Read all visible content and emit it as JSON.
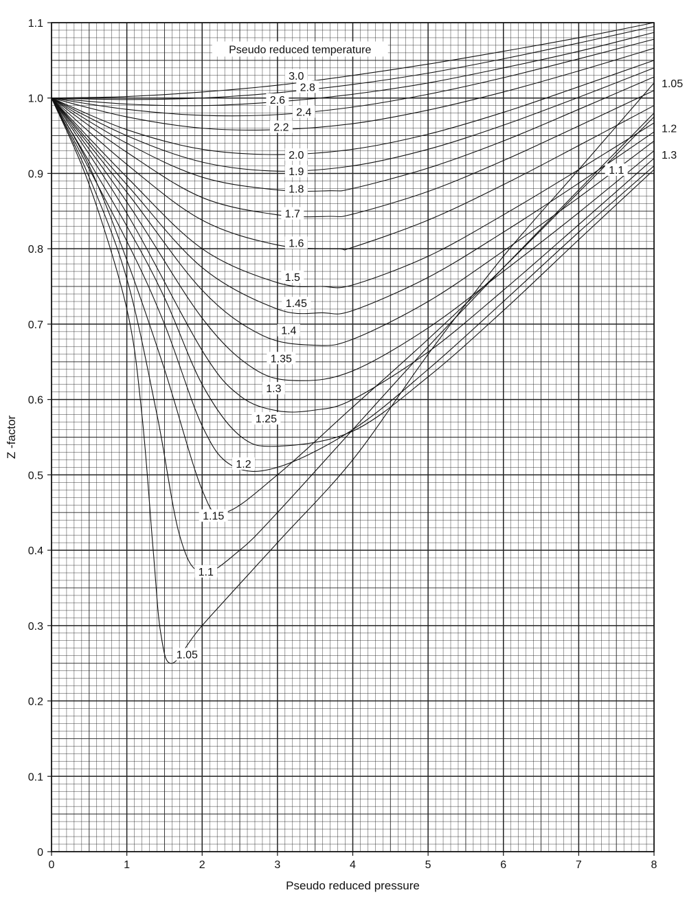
{
  "chart_data": {
    "type": "line",
    "title": "",
    "annotation": "Pseudo reduced temperature",
    "xlabel": "Pseudo reduced pressure",
    "ylabel": "Z -factor",
    "xlim": [
      0,
      8
    ],
    "ylim": [
      0,
      1.1
    ],
    "x_ticks": [
      "0",
      "1",
      "2",
      "3",
      "4",
      "5",
      "6",
      "7",
      "8"
    ],
    "y_ticks": [
      "0",
      "0.1",
      "0.2",
      "0.3",
      "0.4",
      "0.5",
      "0.6",
      "0.7",
      "0.8",
      "0.9",
      "1.0",
      "1.1"
    ],
    "grid": true,
    "series": [
      {
        "name": "3.0",
        "x": [
          0,
          1,
          2,
          3,
          4,
          5,
          6,
          7,
          8
        ],
        "y": [
          1.0,
          1.002,
          1.008,
          1.017,
          1.03,
          1.045,
          1.062,
          1.08,
          1.1
        ]
      },
      {
        "name": "2.8",
        "x": [
          0,
          1,
          2,
          3,
          4,
          5,
          6,
          7,
          8
        ],
        "y": [
          1.0,
          0.998,
          1.0,
          1.007,
          1.018,
          1.033,
          1.052,
          1.073,
          1.095
        ]
      },
      {
        "name": "2.6",
        "x": [
          0,
          1,
          2,
          3,
          4,
          5,
          6,
          7,
          8
        ],
        "y": [
          1.0,
          0.992,
          0.99,
          0.995,
          1.005,
          1.02,
          1.04,
          1.062,
          1.087
        ]
      },
      {
        "name": "2.4",
        "x": [
          0,
          1,
          2,
          3,
          4,
          5,
          6,
          7,
          8
        ],
        "y": [
          1.0,
          0.985,
          0.977,
          0.978,
          0.988,
          1.005,
          1.027,
          1.052,
          1.078
        ]
      },
      {
        "name": "2.2",
        "x": [
          0,
          1,
          2,
          3,
          4,
          5,
          6,
          7,
          8
        ],
        "y": [
          1.0,
          0.975,
          0.96,
          0.958,
          0.966,
          0.984,
          1.008,
          1.036,
          1.066
        ]
      },
      {
        "name": "2.0",
        "x": [
          0,
          1,
          2,
          3,
          4,
          5,
          6,
          7,
          8
        ],
        "y": [
          1.0,
          0.958,
          0.932,
          0.925,
          0.932,
          0.952,
          0.981,
          1.015,
          1.05
        ]
      },
      {
        "name": "1.9",
        "x": [
          0,
          1,
          2,
          3,
          4,
          5,
          6,
          7,
          8
        ],
        "y": [
          1.0,
          0.95,
          0.915,
          0.903,
          0.91,
          0.932,
          0.964,
          1.001,
          1.04
        ]
      },
      {
        "name": "1.8",
        "x": [
          0,
          1,
          2,
          3,
          3.7,
          4,
          5,
          6,
          7,
          8
        ],
        "y": [
          1.0,
          0.94,
          0.895,
          0.878,
          0.877,
          0.88,
          0.907,
          0.943,
          0.985,
          1.028
        ]
      },
      {
        "name": "1.7",
        "x": [
          0,
          1,
          2,
          3,
          3.7,
          4,
          5,
          6,
          7,
          8
        ],
        "y": [
          1.0,
          0.928,
          0.868,
          0.845,
          0.843,
          0.846,
          0.876,
          0.917,
          0.963,
          1.01
        ]
      },
      {
        "name": "1.6",
        "x": [
          0,
          1,
          2,
          3,
          3.8,
          4,
          5,
          6,
          7,
          8
        ],
        "y": [
          1.0,
          0.912,
          0.838,
          0.805,
          0.8,
          0.802,
          0.838,
          0.885,
          0.937,
          0.99
        ]
      },
      {
        "name": "1.5",
        "x": [
          0,
          1,
          2,
          3,
          3.6,
          4,
          5,
          6,
          7,
          8
        ],
        "y": [
          1.0,
          0.895,
          0.8,
          0.755,
          0.75,
          0.752,
          0.79,
          0.845,
          0.905,
          0.967
        ]
      },
      {
        "name": "1.45",
        "x": [
          0,
          1,
          2,
          3,
          3.6,
          4,
          5,
          6,
          7,
          8
        ],
        "y": [
          1.0,
          0.885,
          0.775,
          0.72,
          0.715,
          0.718,
          0.762,
          0.822,
          0.887,
          0.955
        ]
      },
      {
        "name": "1.4",
        "x": [
          0,
          1,
          2,
          2.8,
          3.5,
          4,
          5,
          6,
          7,
          8
        ],
        "y": [
          1.0,
          0.875,
          0.745,
          0.685,
          0.672,
          0.68,
          0.73,
          0.797,
          0.868,
          0.943
        ]
      },
      {
        "name": "1.35",
        "x": [
          0,
          1,
          2,
          2.7,
          3.3,
          4,
          5,
          6,
          7,
          8
        ],
        "y": [
          1.0,
          0.862,
          0.708,
          0.64,
          0.625,
          0.638,
          0.695,
          0.77,
          0.848,
          0.93
        ]
      },
      {
        "name": "1.3",
        "x": [
          0,
          1,
          2,
          2.5,
          3,
          3.5,
          4,
          5,
          6,
          7,
          8
        ],
        "y": [
          1.0,
          0.847,
          0.665,
          0.605,
          0.585,
          0.586,
          0.6,
          0.663,
          0.745,
          0.832,
          0.92
        ]
      },
      {
        "name": "1.25",
        "x": [
          0,
          1,
          1.5,
          2,
          2.5,
          3,
          4,
          5,
          6,
          7,
          8
        ],
        "y": [
          1.0,
          0.83,
          0.735,
          0.62,
          0.552,
          0.538,
          0.558,
          0.63,
          0.718,
          0.812,
          0.905
        ]
      },
      {
        "name": "1.2",
        "x": [
          0,
          1,
          1.5,
          2,
          2.4,
          3,
          4,
          5,
          6,
          7,
          8
        ],
        "y": [
          1.0,
          0.81,
          0.7,
          0.565,
          0.512,
          0.51,
          0.56,
          0.64,
          0.73,
          0.822,
          0.91
        ]
      },
      {
        "name": "1.15",
        "x": [
          0,
          0.5,
          1,
          1.5,
          2,
          2.3,
          3,
          4,
          5,
          6,
          7,
          8
        ],
        "y": [
          1.0,
          0.91,
          0.785,
          0.64,
          0.48,
          0.45,
          0.5,
          0.59,
          0.68,
          0.775,
          0.875,
          0.975
        ]
      },
      {
        "name": "1.1",
        "x": [
          0,
          0.5,
          1,
          1.4,
          1.7,
          2.0,
          2.5,
          3,
          4,
          5,
          6,
          7,
          8
        ],
        "y": [
          1.0,
          0.895,
          0.76,
          0.58,
          0.42,
          0.37,
          0.4,
          0.45,
          0.56,
          0.67,
          0.775,
          0.878,
          0.98
        ]
      },
      {
        "name": "1.05",
        "x": [
          0,
          0.5,
          1,
          1.2,
          1.35,
          1.45,
          1.6,
          2,
          3,
          4,
          5,
          6,
          7,
          8
        ],
        "y": [
          1.0,
          0.885,
          0.72,
          0.58,
          0.4,
          0.29,
          0.25,
          0.3,
          0.41,
          0.52,
          0.66,
          0.79,
          0.905,
          1.02
        ]
      }
    ],
    "labels_left": [
      {
        "text": "3.0",
        "x": 3.25,
        "y": 1.03
      },
      {
        "text": "2.8",
        "x": 3.4,
        "y": 1.015
      },
      {
        "text": "2.6",
        "x": 3.0,
        "y": 0.998
      },
      {
        "text": "2.4",
        "x": 3.35,
        "y": 0.982
      },
      {
        "text": "2.2",
        "x": 3.05,
        "y": 0.962
      },
      {
        "text": "2.0",
        "x": 3.25,
        "y": 0.925
      },
      {
        "text": "1.9",
        "x": 3.25,
        "y": 0.903
      },
      {
        "text": "1.8",
        "x": 3.25,
        "y": 0.88
      },
      {
        "text": "1.7",
        "x": 3.2,
        "y": 0.847
      },
      {
        "text": "1.6",
        "x": 3.25,
        "y": 0.808
      },
      {
        "text": "1.5",
        "x": 3.2,
        "y": 0.763
      },
      {
        "text": "1.45",
        "x": 3.25,
        "y": 0.728
      },
      {
        "text": "1.4",
        "x": 3.15,
        "y": 0.692
      },
      {
        "text": "1.35",
        "x": 3.05,
        "y": 0.655
      },
      {
        "text": "1.3",
        "x": 2.95,
        "y": 0.615
      },
      {
        "text": "1.25",
        "x": 2.85,
        "y": 0.575
      },
      {
        "text": "1.2",
        "x": 2.55,
        "y": 0.515
      },
      {
        "text": "1.15",
        "x": 2.15,
        "y": 0.446
      },
      {
        "text": "1.1",
        "x": 2.05,
        "y": 0.372
      },
      {
        "text": "1.05",
        "x": 1.8,
        "y": 0.262
      }
    ],
    "labels_right": [
      {
        "text": "1.05",
        "x": 8.1,
        "y": 1.02
      },
      {
        "text": "1.2",
        "x": 8.1,
        "y": 0.96
      },
      {
        "text": "1.3",
        "x": 8.1,
        "y": 0.925
      },
      {
        "text": "1.1",
        "x": 7.5,
        "y": 0.905
      }
    ]
  }
}
